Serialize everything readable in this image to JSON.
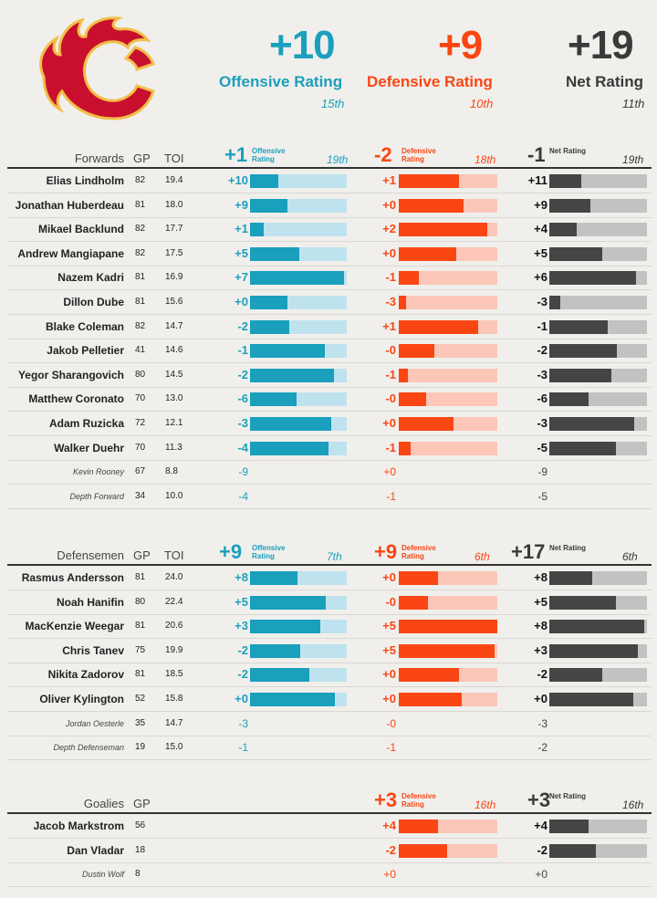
{
  "colors": {
    "offense": "#1a9fbd",
    "offense_light": "#bfe3ee",
    "defense": "#fa4613",
    "defense_light": "#fcc7b8",
    "net": "#454545",
    "net_light": "#c2c2c2",
    "logo_red": "#c8102e",
    "logo_gold": "#f1be48"
  },
  "team": {
    "logo_name": "flaming-c-logo",
    "offense": {
      "value": "+10",
      "label": "Offensive Rating",
      "rank": "15th"
    },
    "defense": {
      "value": "+9",
      "label": "Defensive Rating",
      "rank": "10th"
    },
    "net": {
      "value": "+19",
      "label": "Net Rating",
      "rank": "11th"
    }
  },
  "sections": [
    {
      "title": "Forwards",
      "gp_label": "GP",
      "toi_label": "TOI",
      "offense": {
        "value": "+1",
        "label": "Offensive Rating",
        "rank": "19th"
      },
      "defense": {
        "value": "-2",
        "label": "Defensive Rating",
        "rank": "18th"
      },
      "net": {
        "value": "-1",
        "label": "Net Rating",
        "rank": "19th"
      },
      "rows": [
        {
          "name": "Elias Lindholm",
          "gp": "82",
          "toi": "19.4",
          "off": "+10",
          "off_pct": 0.29,
          "def": "+1",
          "def_pct": 0.61,
          "net": "+11",
          "net_pct": 0.33,
          "minor": false
        },
        {
          "name": "Jonathan Huberdeau",
          "gp": "81",
          "toi": "18.0",
          "off": "+9",
          "off_pct": 0.39,
          "def": "+0",
          "def_pct": 0.66,
          "net": "+9",
          "net_pct": 0.42,
          "minor": false
        },
        {
          "name": "Mikael Backlund",
          "gp": "82",
          "toi": "17.7",
          "off": "+1",
          "off_pct": 0.14,
          "def": "+2",
          "def_pct": 0.9,
          "net": "+4",
          "net_pct": 0.28,
          "minor": false
        },
        {
          "name": "Andrew Mangiapane",
          "gp": "82",
          "toi": "17.5",
          "off": "+5",
          "off_pct": 0.51,
          "def": "+0",
          "def_pct": 0.58,
          "net": "+5",
          "net_pct": 0.54,
          "minor": false
        },
        {
          "name": "Nazem Kadri",
          "gp": "81",
          "toi": "16.9",
          "off": "+7",
          "off_pct": 0.97,
          "def": "-1",
          "def_pct": 0.2,
          "net": "+6",
          "net_pct": 0.89,
          "minor": false
        },
        {
          "name": "Dillon Dube",
          "gp": "81",
          "toi": "15.6",
          "off": "+0",
          "off_pct": 0.39,
          "def": "-3",
          "def_pct": 0.07,
          "net": "-3",
          "net_pct": 0.11,
          "minor": false
        },
        {
          "name": "Blake Coleman",
          "gp": "82",
          "toi": "14.7",
          "off": "-2",
          "off_pct": 0.41,
          "def": "+1",
          "def_pct": 0.81,
          "net": "-1",
          "net_pct": 0.6,
          "minor": false
        },
        {
          "name": "Jakob Pelletier",
          "gp": "41",
          "toi": "14.6",
          "off": "-1",
          "off_pct": 0.77,
          "def": "-0",
          "def_pct": 0.36,
          "net": "-2",
          "net_pct": 0.69,
          "minor": false
        },
        {
          "name": "Yegor Sharangovich",
          "gp": "80",
          "toi": "14.5",
          "off": "-2",
          "off_pct": 0.87,
          "def": "-1",
          "def_pct": 0.09,
          "net": "-3",
          "net_pct": 0.64,
          "minor": false
        },
        {
          "name": "Matthew Coronato",
          "gp": "70",
          "toi": "13.0",
          "off": "-6",
          "off_pct": 0.48,
          "def": "-0",
          "def_pct": 0.28,
          "net": "-6",
          "net_pct": 0.4,
          "minor": false
        },
        {
          "name": "Adam Ruzicka",
          "gp": "72",
          "toi": "12.1",
          "off": "-3",
          "off_pct": 0.84,
          "def": "+0",
          "def_pct": 0.56,
          "net": "-3",
          "net_pct": 0.87,
          "minor": false
        },
        {
          "name": "Walker Duehr",
          "gp": "70",
          "toi": "11.3",
          "off": "-4",
          "off_pct": 0.81,
          "def": "-1",
          "def_pct": 0.12,
          "net": "-5",
          "net_pct": 0.68,
          "minor": false
        },
        {
          "name": "Kevin Rooney",
          "gp": "67",
          "toi": "8.8",
          "off": "-9",
          "def": "+0",
          "net": "-9",
          "minor": true
        },
        {
          "name": "Depth Forward",
          "gp": "34",
          "toi": "10.0",
          "off": "-4",
          "def": "-1",
          "net": "-5",
          "minor": true
        }
      ]
    },
    {
      "title": "Defensemen",
      "gp_label": "GP",
      "toi_label": "TOI",
      "offense": {
        "value": "+9",
        "label": "Offensive Rating",
        "rank": "7th"
      },
      "defense": {
        "value": "+9",
        "label": "Defensive Rating",
        "rank": "6th"
      },
      "net": {
        "value": "+17",
        "label": "Net Rating",
        "rank": "6th"
      },
      "rows": [
        {
          "name": "Rasmus Andersson",
          "gp": "81",
          "toi": "24.0",
          "off": "+8",
          "off_pct": 0.49,
          "def": "+0",
          "def_pct": 0.4,
          "net": "+8",
          "net_pct": 0.44,
          "minor": false
        },
        {
          "name": "Noah Hanifin",
          "gp": "80",
          "toi": "22.4",
          "off": "+5",
          "off_pct": 0.78,
          "def": "-0",
          "def_pct": 0.3,
          "net": "+5",
          "net_pct": 0.68,
          "minor": false
        },
        {
          "name": "MacKenzie Weegar",
          "gp": "81",
          "toi": "20.6",
          "off": "+3",
          "off_pct": 0.73,
          "def": "+5",
          "def_pct": 1.0,
          "net": "+8",
          "net_pct": 0.97,
          "minor": false
        },
        {
          "name": "Chris Tanev",
          "gp": "75",
          "toi": "19.9",
          "off": "-2",
          "off_pct": 0.52,
          "def": "+5",
          "def_pct": 0.97,
          "net": "+3",
          "net_pct": 0.91,
          "minor": false
        },
        {
          "name": "Nikita Zadorov",
          "gp": "81",
          "toi": "18.5",
          "off": "-2",
          "off_pct": 0.61,
          "def": "+0",
          "def_pct": 0.61,
          "net": "-2",
          "net_pct": 0.54,
          "minor": false
        },
        {
          "name": "Oliver Kylington",
          "gp": "52",
          "toi": "15.8",
          "off": "+0",
          "off_pct": 0.88,
          "def": "+0",
          "def_pct": 0.64,
          "net": "+0",
          "net_pct": 0.86,
          "minor": false
        },
        {
          "name": "Jordan Oesterle",
          "gp": "35",
          "toi": "14.7",
          "off": "-3",
          "def": "-0",
          "net": "-3",
          "minor": true
        },
        {
          "name": "Depth Defenseman",
          "gp": "19",
          "toi": "15.0",
          "off": "-1",
          "def": "-1",
          "net": "-2",
          "minor": true
        }
      ]
    },
    {
      "title": "Goalies",
      "gp_label": "GP",
      "toi_label": "",
      "defense": {
        "value": "+3",
        "label": "Defensive Rating",
        "rank": "16th"
      },
      "net": {
        "value": "+3",
        "label": "Net Rating",
        "rank": "16th"
      },
      "rows": [
        {
          "name": "Jacob Markstrom",
          "gp": "56",
          "toi": "",
          "def": "+4",
          "def_pct": 0.4,
          "net": "+4",
          "net_pct": 0.4,
          "minor": false
        },
        {
          "name": "Dan Vladar",
          "gp": "18",
          "toi": "",
          "def": "-2",
          "def_pct": 0.49,
          "net": "-2",
          "net_pct": 0.48,
          "minor": false
        },
        {
          "name": "Dustin Wolf",
          "gp": "8",
          "toi": "",
          "def": "+0",
          "net": "+0",
          "minor": true
        }
      ]
    }
  ]
}
